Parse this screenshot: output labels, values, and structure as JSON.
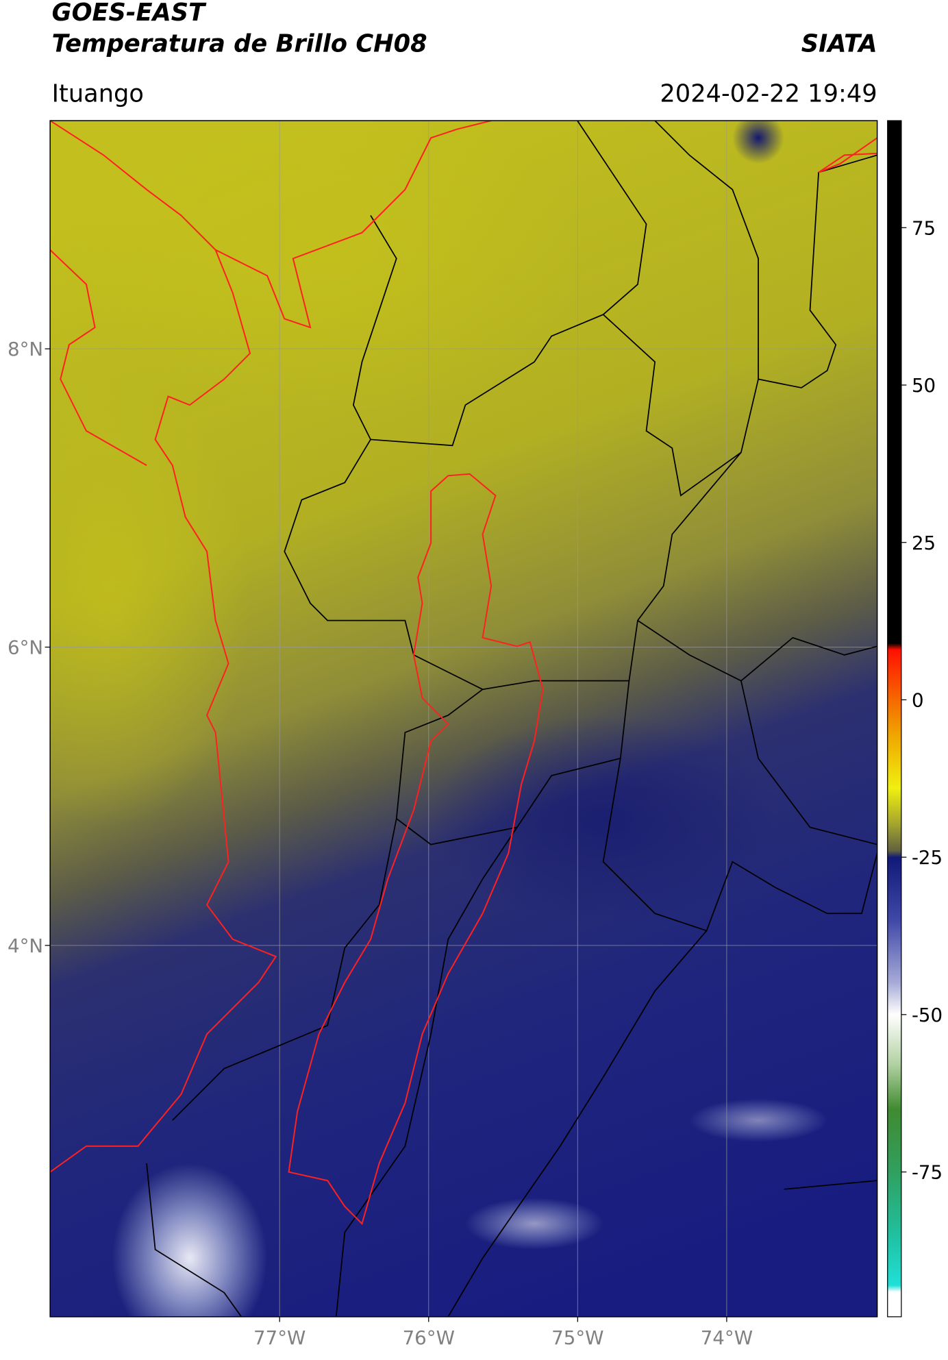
{
  "header": {
    "title": "GOES-EAST",
    "product": "Temperatura de Brillo CH08",
    "brand": "SIATA",
    "location": "Ituango",
    "datetime": "2024-02-22 19:49"
  },
  "map": {
    "xlim": [
      -78.54,
      -72.99
    ],
    "ylim": [
      1.51,
      9.53
    ],
    "xticks": [
      {
        "value": -77,
        "label": "77°W"
      },
      {
        "value": -76,
        "label": "76°W"
      },
      {
        "value": -75,
        "label": "75°W"
      },
      {
        "value": -74,
        "label": "74°W"
      }
    ],
    "yticks": [
      {
        "value": 8,
        "label": "8°N"
      },
      {
        "value": 6,
        "label": "6°N"
      },
      {
        "value": 4,
        "label": "4°N"
      }
    ],
    "grid": true
  },
  "colorbar": {
    "clim": [
      -98,
      92
    ],
    "ticks": [
      75,
      50,
      25,
      0,
      -25,
      -50,
      -75
    ],
    "colormap": [
      {
        "value": -98,
        "color": "#ffffff"
      },
      {
        "value": -94,
        "color": "#ffffff"
      },
      {
        "value": -93,
        "color": "#20e0d8"
      },
      {
        "value": -85,
        "color": "#20c0a0"
      },
      {
        "value": -75,
        "color": "#30a060"
      },
      {
        "value": -65,
        "color": "#408a30"
      },
      {
        "value": -58,
        "color": "#b0d0a0"
      },
      {
        "value": -50,
        "color": "#ffffff"
      },
      {
        "value": -45,
        "color": "#a8acd8"
      },
      {
        "value": -35,
        "color": "#4048a8"
      },
      {
        "value": -25,
        "color": "#101878"
      },
      {
        "value": -24,
        "color": "#606040"
      },
      {
        "value": -20,
        "color": "#a0a030"
      },
      {
        "value": -14,
        "color": "#f0f010"
      },
      {
        "value": -5,
        "color": "#f0a000"
      },
      {
        "value": 8,
        "color": "#ff1000"
      },
      {
        "value": 9,
        "color": "#000000"
      },
      {
        "value": 92,
        "color": "#000000"
      }
    ]
  }
}
